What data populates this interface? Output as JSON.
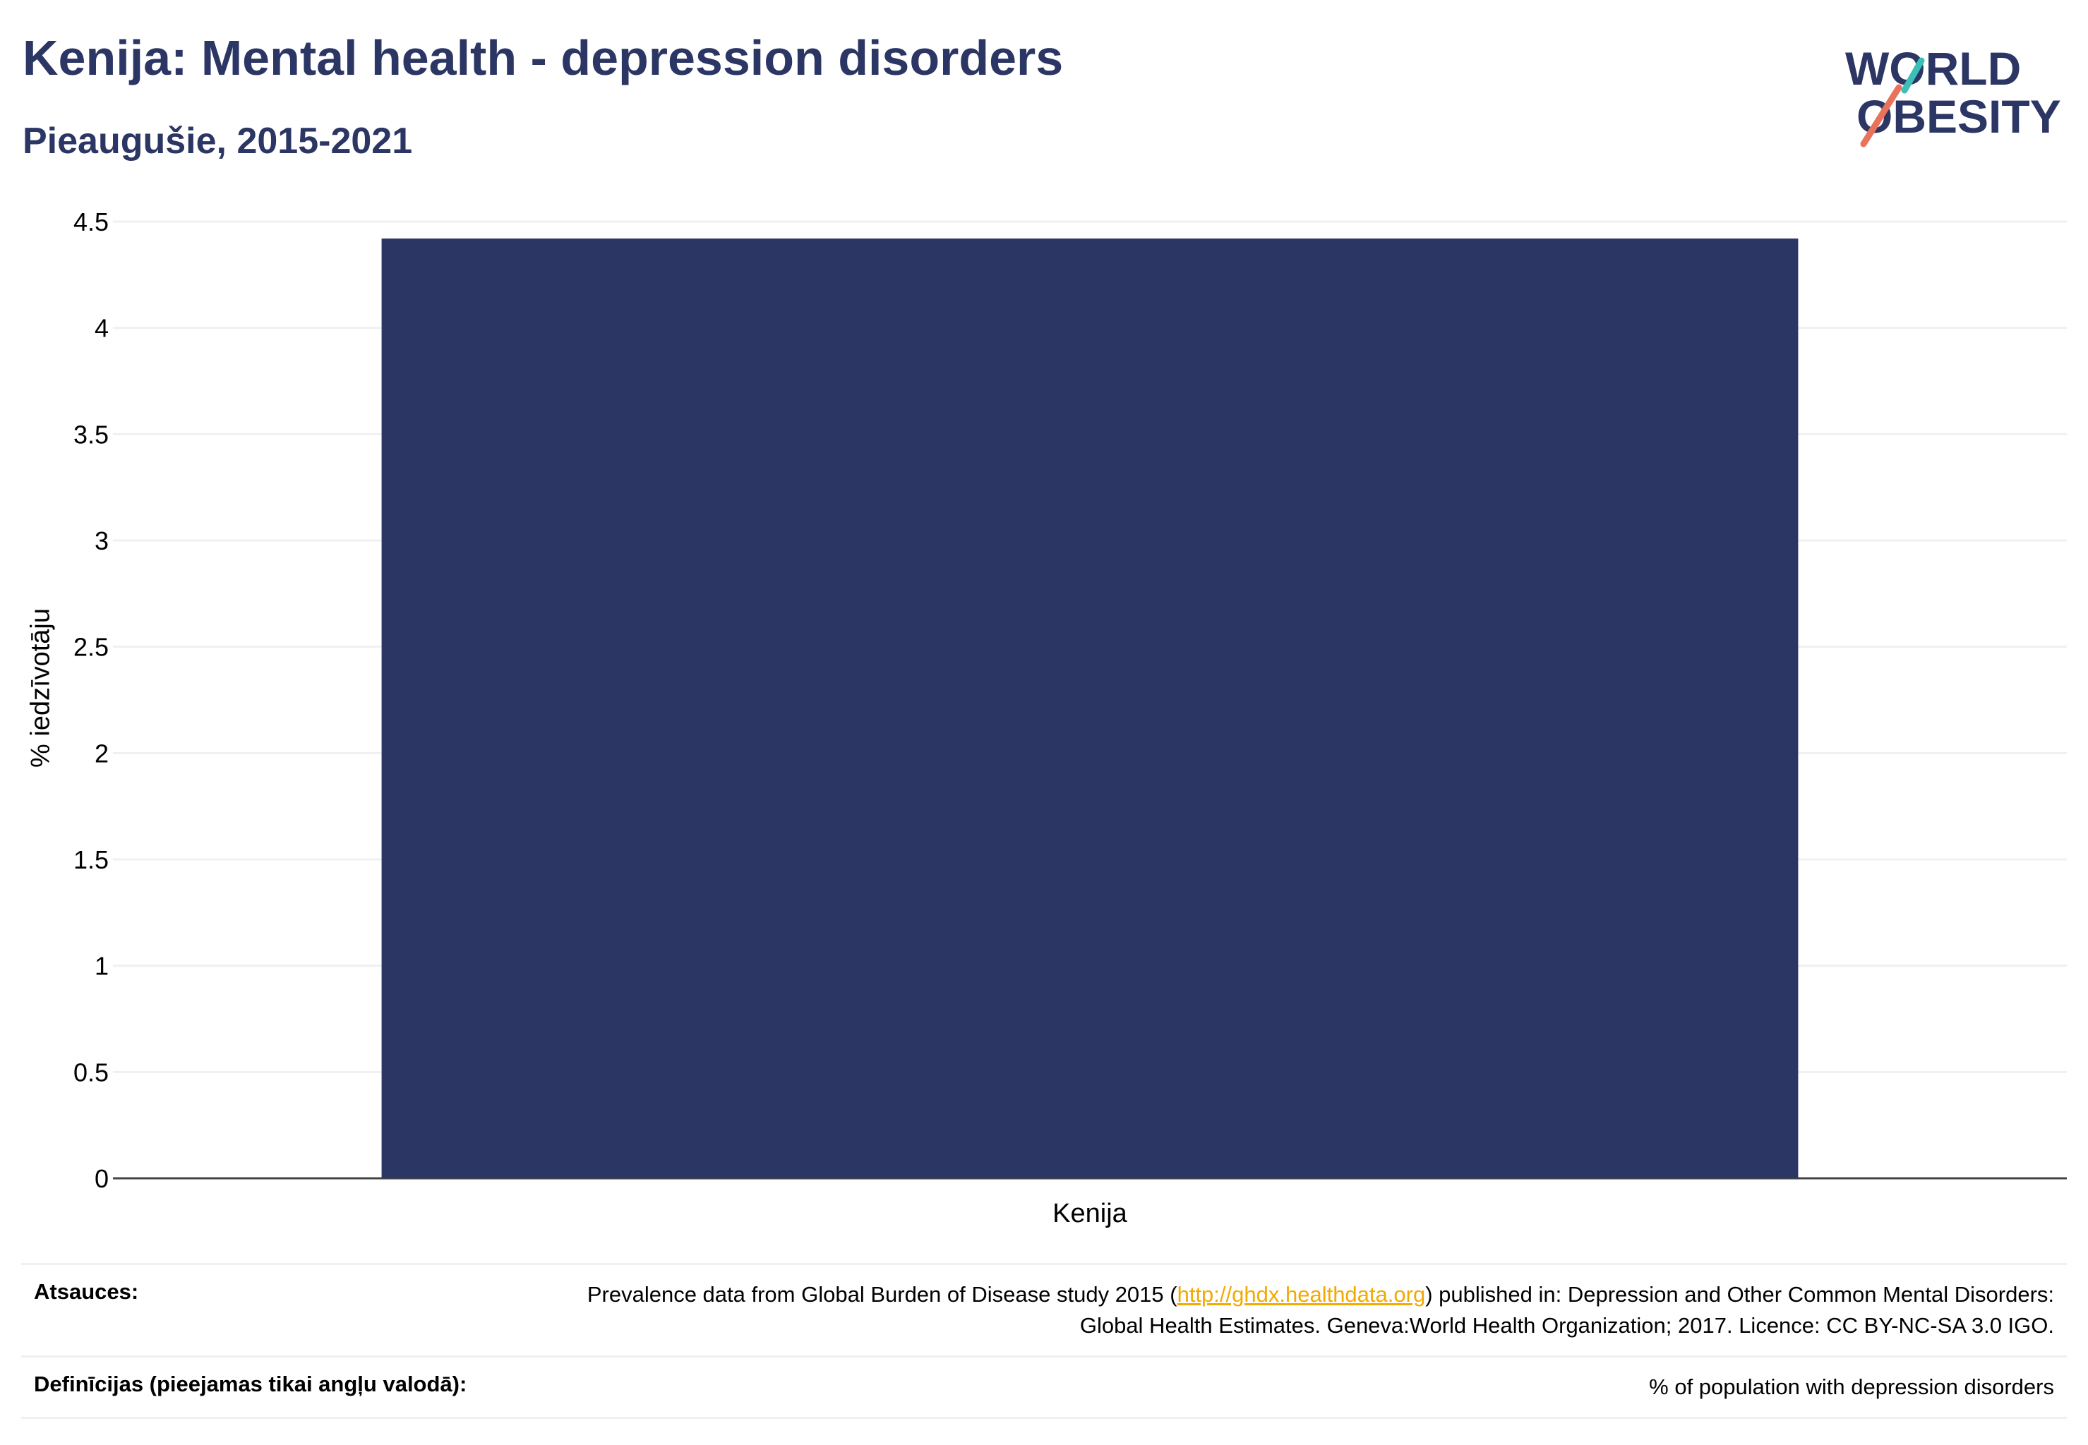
{
  "header": {
    "title": "Kenija: Mental health - depression disorders",
    "subtitle": "Pieaugušie, 2015-2021"
  },
  "logo": {
    "line1": "WORLD",
    "line2": "OBESITY",
    "accent_teal": "#3bbfb7",
    "accent_coral": "#e8735a"
  },
  "colors": {
    "bar": "#2b3664",
    "text": "#2b3664",
    "grid": "#eef0f4"
  },
  "chart_data": {
    "type": "bar",
    "categories": [
      "Kenija"
    ],
    "values": [
      4.42
    ],
    "title": "Kenija: Mental health - depression disorders",
    "subtitle": "Pieaugušie, 2015-2021",
    "xlabel": "",
    "ylabel": "% iedzīvotāju",
    "ylim": [
      0,
      4.5
    ],
    "yticks": [
      "0",
      "0.5",
      "1",
      "1.5",
      "2",
      "2.5",
      "3",
      "3.5",
      "4",
      "4.5"
    ],
    "grid": true
  },
  "footer": {
    "sources_label": "Atsauces:",
    "sources_pre": "Prevalence data from Global Burden of Disease study 2015 (",
    "sources_link": "http://ghdx.healthdata.org",
    "sources_post": ") published in: Depression and Other Common Mental Disorders: Global Health Estimates. Geneva:World Health Organization; 2017. Licence: CC BY-NC-SA 3.0 IGO.",
    "definitions_label": "Definīcijas (pieejamas tikai angļu valodā):",
    "definitions_text": "% of population with depression disorders"
  }
}
